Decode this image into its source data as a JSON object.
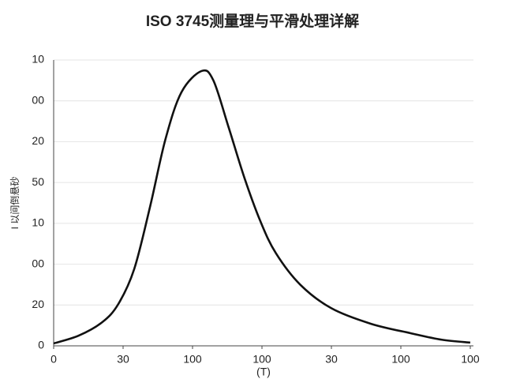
{
  "chart_data": {
    "type": "line",
    "title": "ISO 3745测量理与平滑处理详解",
    "x_label": "(T)",
    "y_label": "I 以间倒悬砂",
    "x": [
      0,
      0.36,
      0.7,
      0.93,
      1.16,
      1.39,
      1.61,
      1.84,
      2.13,
      2.3,
      2.52,
      2.75,
      2.98,
      3.2,
      3.55,
      4.0,
      4.57,
      5.14,
      5.59,
      6.0
    ],
    "series": [
      {
        "color": "#111111",
        "values": [
          0.06,
          0.25,
          0.58,
          1.02,
          1.88,
          3.42,
          5.06,
          6.21,
          6.73,
          6.5,
          5.35,
          4.1,
          3.04,
          2.27,
          1.5,
          0.92,
          0.54,
          0.31,
          0.15,
          0.08
        ]
      }
    ],
    "xlim": [
      0,
      6
    ],
    "ylim": [
      0,
      7
    ],
    "xticks": [
      {
        "value": 0,
        "label": "0"
      },
      {
        "value": 1,
        "label": "30"
      },
      {
        "value": 2,
        "label": "100"
      },
      {
        "value": 3,
        "label": "100"
      },
      {
        "value": 4,
        "label": "30"
      },
      {
        "value": 5,
        "label": "100"
      },
      {
        "value": 6,
        "label": "100"
      }
    ],
    "yticks": [
      {
        "value": 0,
        "label": "0"
      },
      {
        "value": 1,
        "label": "20"
      },
      {
        "value": 2,
        "label": "00"
      },
      {
        "value": 3,
        "label": "10"
      },
      {
        "value": 4,
        "label": "50"
      },
      {
        "value": 5,
        "label": "20"
      },
      {
        "value": 6,
        "label": "00"
      },
      {
        "value": 7,
        "label": "10"
      }
    ],
    "grid": true
  }
}
